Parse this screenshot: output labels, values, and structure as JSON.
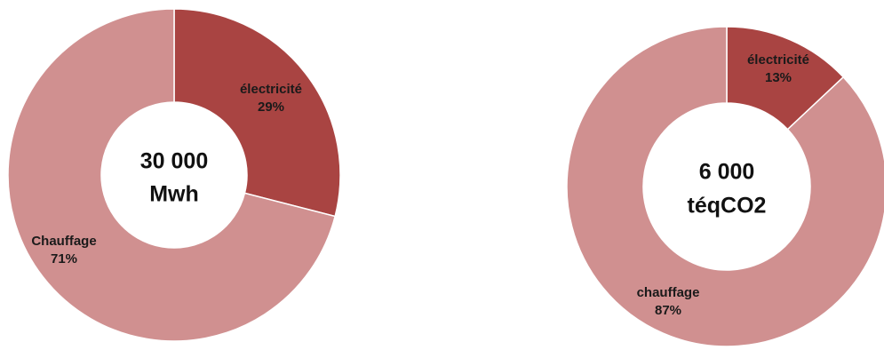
{
  "chart_data": [
    {
      "type": "pie",
      "center_text": [
        "30 000",
        "Mwh"
      ],
      "slices": [
        {
          "label": "électricité",
          "percent_label": "29%",
          "value": 29,
          "color": "#a94442"
        },
        {
          "label": "Chauffage",
          "percent_label": "71%",
          "value": 71,
          "color": "#d09090"
        }
      ]
    },
    {
      "type": "pie",
      "center_text": [
        "6 000",
        "téqCO2"
      ],
      "slices": [
        {
          "label": "électricité",
          "percent_label": "13%",
          "value": 13,
          "color": "#a94442"
        },
        {
          "label": "chauffage",
          "percent_label": "87%",
          "value": 87,
          "color": "#d09090"
        }
      ]
    }
  ]
}
